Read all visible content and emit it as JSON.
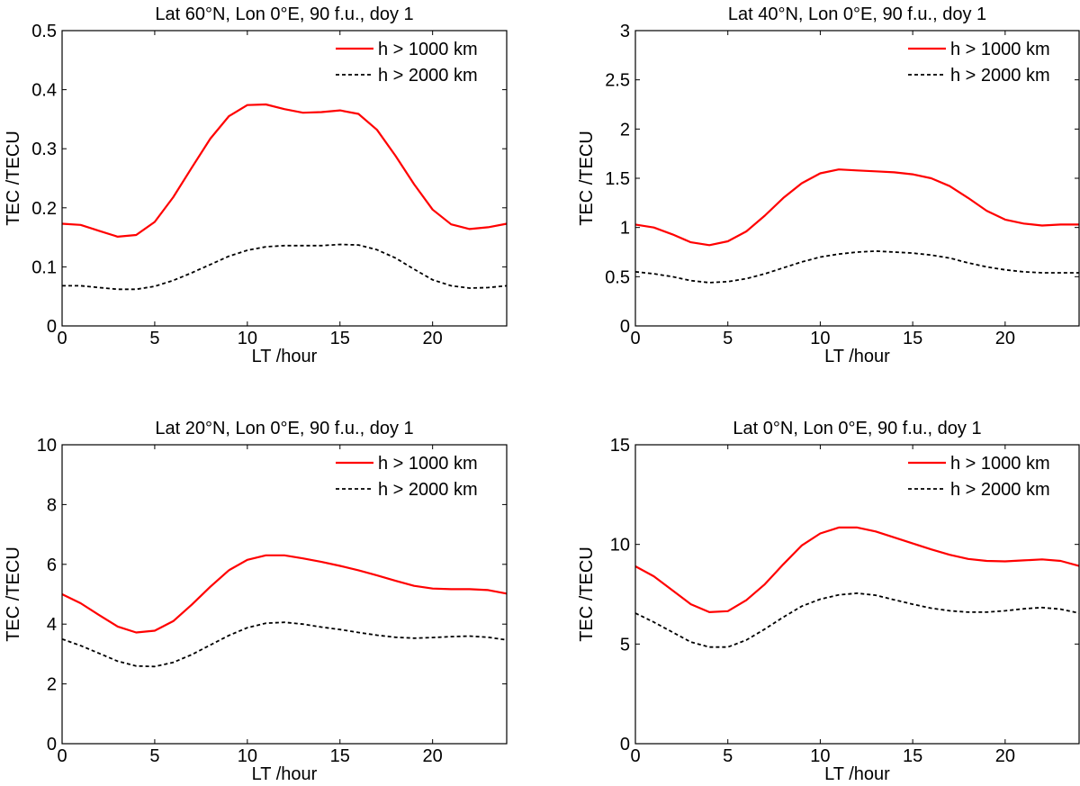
{
  "chart_data": [
    {
      "type": "line",
      "title": "Lat 60°N, Lon 0°E, 90 f.u., doy 1",
      "xlabel": "LT /hour",
      "ylabel": "TEC /TECU",
      "xlim": [
        0,
        24
      ],
      "ylim": [
        0,
        0.5
      ],
      "xticks": [
        0,
        5,
        10,
        15,
        20
      ],
      "xtick_labels": [
        "0",
        "5",
        "10",
        "15",
        "20"
      ],
      "yticks": [
        0,
        0.1,
        0.2,
        0.3,
        0.4,
        0.5
      ],
      "ytick_labels": [
        "0",
        "0.1",
        "0.2",
        "0.3",
        "0.4",
        "0.5"
      ],
      "grid": false,
      "legend_position": "top-right",
      "x": [
        0,
        1,
        2,
        3,
        4,
        5,
        6,
        7,
        8,
        9,
        10,
        11,
        12,
        13,
        14,
        15,
        16,
        17,
        18,
        19,
        20,
        21,
        22,
        23,
        24
      ],
      "series": [
        {
          "name": "h > 1000 km",
          "color": "#ff0000",
          "style": "solid",
          "values": [
            0.173,
            0.171,
            0.161,
            0.151,
            0.154,
            0.176,
            0.218,
            0.268,
            0.317,
            0.355,
            0.374,
            0.375,
            0.367,
            0.361,
            0.362,
            0.365,
            0.359,
            0.332,
            0.288,
            0.24,
            0.197,
            0.172,
            0.164,
            0.167,
            0.173
          ]
        },
        {
          "name": "h > 2000 km",
          "color": "#000000",
          "style": "dashed",
          "values": [
            0.068,
            0.068,
            0.065,
            0.062,
            0.062,
            0.067,
            0.077,
            0.09,
            0.104,
            0.118,
            0.128,
            0.134,
            0.136,
            0.136,
            0.136,
            0.138,
            0.137,
            0.129,
            0.115,
            0.096,
            0.078,
            0.068,
            0.064,
            0.065,
            0.068
          ]
        }
      ]
    },
    {
      "type": "line",
      "title": "Lat 40°N, Lon 0°E, 90 f.u., doy 1",
      "xlabel": "LT /hour",
      "ylabel": "TEC /TECU",
      "xlim": [
        0,
        24
      ],
      "ylim": [
        0,
        3
      ],
      "xticks": [
        0,
        5,
        10,
        15,
        20
      ],
      "xtick_labels": [
        "0",
        "5",
        "10",
        "15",
        "20"
      ],
      "yticks": [
        0,
        0.5,
        1,
        1.5,
        2,
        2.5,
        3
      ],
      "ytick_labels": [
        "0",
        "0.5",
        "1",
        "1.5",
        "2",
        "2.5",
        "3"
      ],
      "grid": false,
      "legend_position": "top-right",
      "x": [
        0,
        1,
        2,
        3,
        4,
        5,
        6,
        7,
        8,
        9,
        10,
        11,
        12,
        13,
        14,
        15,
        16,
        17,
        18,
        19,
        20,
        21,
        22,
        23,
        24
      ],
      "series": [
        {
          "name": "h > 1000 km",
          "color": "#ff0000",
          "style": "solid",
          "values": [
            1.03,
            1.0,
            0.93,
            0.85,
            0.82,
            0.86,
            0.96,
            1.12,
            1.3,
            1.45,
            1.55,
            1.59,
            1.58,
            1.57,
            1.56,
            1.54,
            1.5,
            1.42,
            1.3,
            1.17,
            1.08,
            1.04,
            1.02,
            1.03,
            1.03
          ]
        },
        {
          "name": "h > 2000 km",
          "color": "#000000",
          "style": "dashed",
          "values": [
            0.55,
            0.53,
            0.5,
            0.46,
            0.44,
            0.45,
            0.48,
            0.53,
            0.59,
            0.65,
            0.7,
            0.73,
            0.75,
            0.76,
            0.75,
            0.74,
            0.72,
            0.69,
            0.64,
            0.6,
            0.57,
            0.55,
            0.54,
            0.54,
            0.54
          ]
        }
      ]
    },
    {
      "type": "line",
      "title": "Lat 20°N, Lon 0°E, 90 f.u., doy 1",
      "xlabel": "LT /hour",
      "ylabel": "TEC /TECU",
      "xlim": [
        0,
        24
      ],
      "ylim": [
        0,
        10
      ],
      "xticks": [
        0,
        5,
        10,
        15,
        20
      ],
      "xtick_labels": [
        "0",
        "5",
        "10",
        "15",
        "20"
      ],
      "yticks": [
        0,
        2,
        4,
        6,
        8,
        10
      ],
      "ytick_labels": [
        "0",
        "2",
        "4",
        "6",
        "8",
        "10"
      ],
      "grid": false,
      "legend_position": "top-right",
      "x": [
        0,
        1,
        2,
        3,
        4,
        5,
        6,
        7,
        8,
        9,
        10,
        11,
        12,
        13,
        14,
        15,
        16,
        17,
        18,
        19,
        20,
        21,
        22,
        23,
        24
      ],
      "series": [
        {
          "name": "h > 1000 km",
          "color": "#ff0000",
          "style": "solid",
          "values": [
            5.0,
            4.7,
            4.3,
            3.92,
            3.72,
            3.78,
            4.1,
            4.65,
            5.25,
            5.8,
            6.15,
            6.3,
            6.3,
            6.2,
            6.08,
            5.95,
            5.8,
            5.63,
            5.45,
            5.28,
            5.19,
            5.17,
            5.17,
            5.14,
            5.02
          ]
        },
        {
          "name": "h > 2000 km",
          "color": "#000000",
          "style": "dashed",
          "values": [
            3.5,
            3.28,
            3.02,
            2.76,
            2.6,
            2.58,
            2.72,
            2.98,
            3.3,
            3.62,
            3.88,
            4.03,
            4.06,
            4.0,
            3.9,
            3.82,
            3.72,
            3.63,
            3.56,
            3.53,
            3.55,
            3.58,
            3.6,
            3.56,
            3.47
          ]
        }
      ]
    },
    {
      "type": "line",
      "title": "Lat 0°N, Lon 0°E, 90 f.u., doy 1",
      "xlabel": "LT /hour",
      "ylabel": "TEC /TECU",
      "xlim": [
        0,
        24
      ],
      "ylim": [
        0,
        15
      ],
      "xticks": [
        0,
        5,
        10,
        15,
        20
      ],
      "xtick_labels": [
        "0",
        "5",
        "10",
        "15",
        "20"
      ],
      "yticks": [
        0,
        5,
        10,
        15
      ],
      "ytick_labels": [
        "0",
        "5",
        "10",
        "15"
      ],
      "grid": false,
      "legend_position": "top-right",
      "x": [
        0,
        1,
        2,
        3,
        4,
        5,
        6,
        7,
        8,
        9,
        10,
        11,
        12,
        13,
        14,
        15,
        16,
        17,
        18,
        19,
        20,
        21,
        22,
        23,
        24
      ],
      "series": [
        {
          "name": "h > 1000 km",
          "color": "#ff0000",
          "style": "solid",
          "values": [
            8.9,
            8.4,
            7.7,
            7.0,
            6.6,
            6.65,
            7.2,
            8.0,
            9.0,
            9.95,
            10.55,
            10.85,
            10.85,
            10.65,
            10.35,
            10.05,
            9.75,
            9.48,
            9.27,
            9.17,
            9.15,
            9.2,
            9.25,
            9.17,
            8.92
          ]
        },
        {
          "name": "h > 2000 km",
          "color": "#000000",
          "style": "dashed",
          "values": [
            6.55,
            6.1,
            5.6,
            5.1,
            4.85,
            4.85,
            5.2,
            5.75,
            6.35,
            6.9,
            7.25,
            7.47,
            7.55,
            7.45,
            7.22,
            7.0,
            6.8,
            6.67,
            6.6,
            6.6,
            6.67,
            6.77,
            6.83,
            6.75,
            6.55
          ]
        }
      ]
    }
  ]
}
